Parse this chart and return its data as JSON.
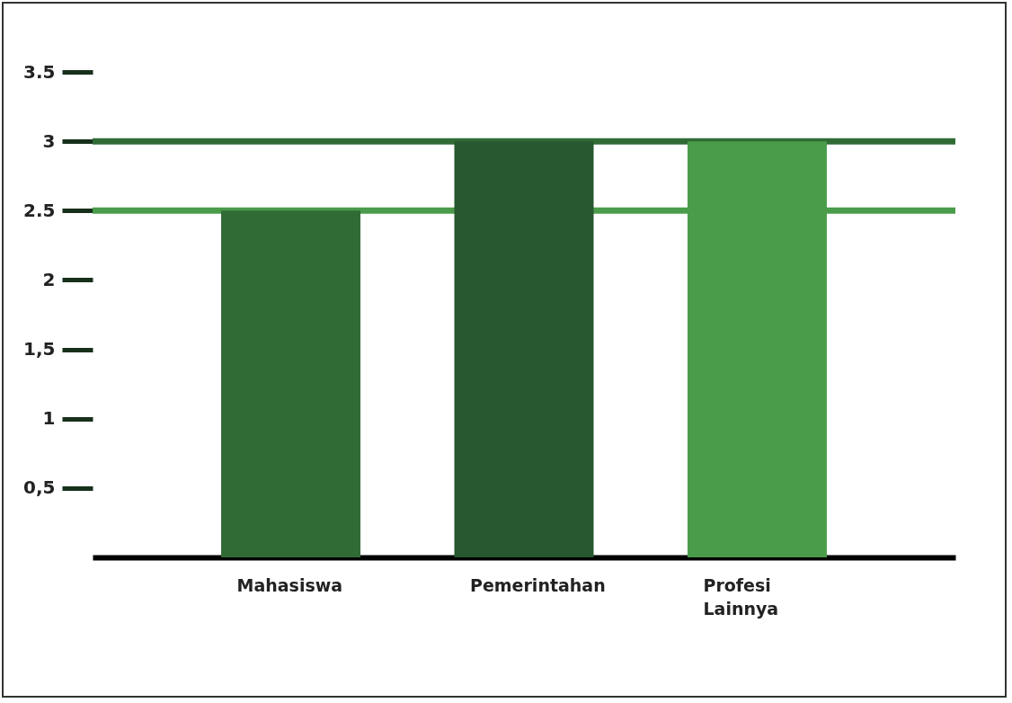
{
  "chart_data": {
    "type": "bar",
    "categories": [
      "Mahasiswa",
      "Pemerintahan",
      "Profesi Lainnya"
    ],
    "values": [
      2.5,
      3,
      3
    ],
    "colors": [
      "#306b36",
      "#27582f",
      "#4a9c4a"
    ],
    "ylim": [
      0,
      3.5
    ],
    "yticks": [
      {
        "value": 0.5,
        "label": "0,5"
      },
      1,
      {
        "value": 1.5,
        "label": "1,5"
      },
      2,
      2.5,
      3,
      3.5
    ],
    "ref_lines": [
      {
        "axis": "y",
        "value": 3,
        "color": "#306b36"
      },
      {
        "axis": "y",
        "value": 2.5,
        "color": "#4a9c4a"
      }
    ],
    "grid": false
  }
}
